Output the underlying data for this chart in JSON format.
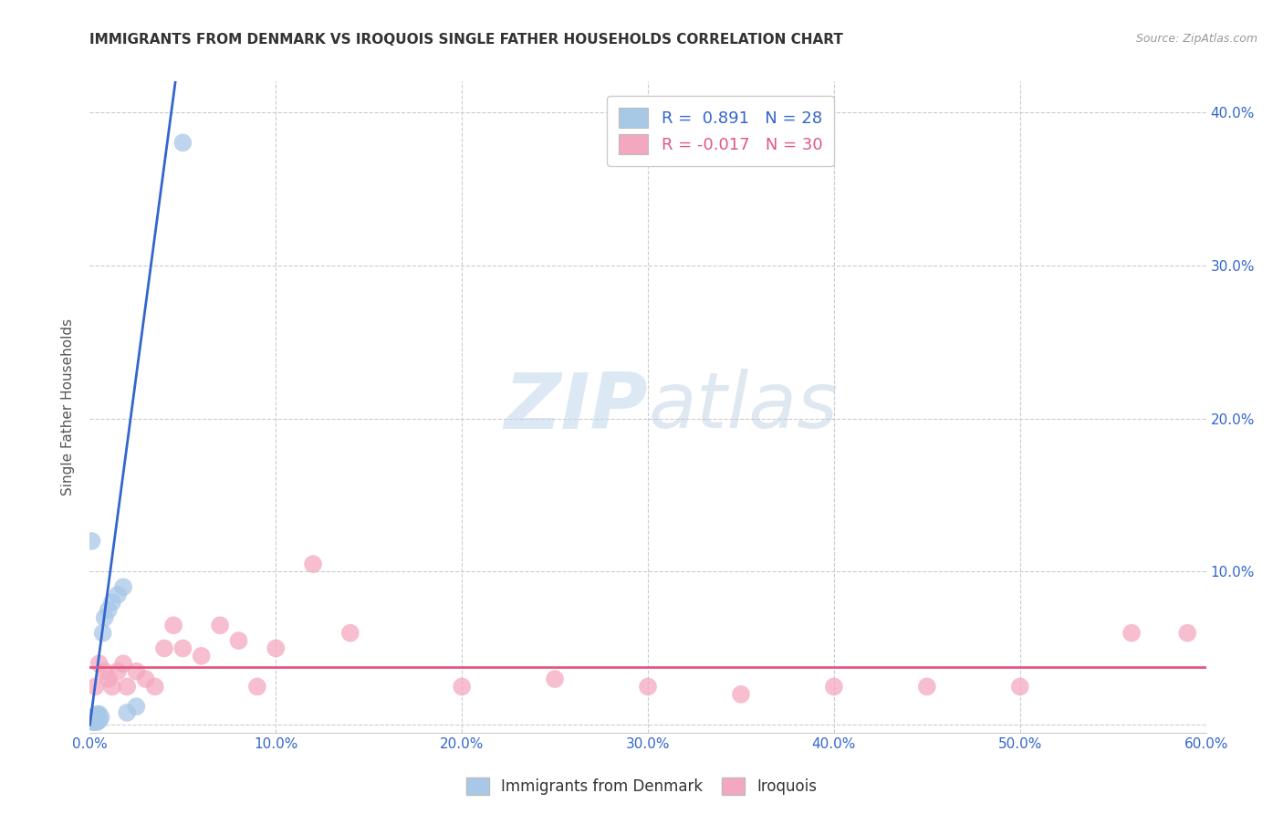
{
  "title": "IMMIGRANTS FROM DENMARK VS IROQUOIS SINGLE FATHER HOUSEHOLDS CORRELATION CHART",
  "source": "Source: ZipAtlas.com",
  "ylabel": "Single Father Households",
  "watermark_zip": "ZIP",
  "watermark_atlas": "atlas",
  "xlim": [
    0.0,
    0.6
  ],
  "ylim": [
    -0.005,
    0.42
  ],
  "xticks": [
    0.0,
    0.1,
    0.2,
    0.3,
    0.4,
    0.5,
    0.6
  ],
  "yticks": [
    0.0,
    0.1,
    0.2,
    0.3,
    0.4
  ],
  "xtick_labels": [
    "0.0%",
    "10.0%",
    "20.0%",
    "30.0%",
    "40.0%",
    "50.0%",
    "60.0%"
  ],
  "ytick_labels_right": [
    "",
    "10.0%",
    "20.0%",
    "30.0%",
    "40.0%"
  ],
  "blue_color": "#a8c8e8",
  "pink_color": "#f4a8c0",
  "blue_line_color": "#3366cc",
  "pink_line_color": "#e05880",
  "legend_label1": "Immigrants from Denmark",
  "legend_label2": "Iroquois",
  "blue_scatter_x": [
    0.001,
    0.001,
    0.002,
    0.002,
    0.002,
    0.002,
    0.003,
    0.003,
    0.003,
    0.003,
    0.003,
    0.004,
    0.004,
    0.004,
    0.004,
    0.005,
    0.005,
    0.006,
    0.007,
    0.008,
    0.01,
    0.012,
    0.015,
    0.018,
    0.02,
    0.025,
    0.05,
    0.001
  ],
  "blue_scatter_y": [
    0.002,
    0.003,
    0.002,
    0.003,
    0.004,
    0.005,
    0.002,
    0.003,
    0.004,
    0.005,
    0.006,
    0.002,
    0.003,
    0.005,
    0.007,
    0.003,
    0.007,
    0.005,
    0.06,
    0.07,
    0.075,
    0.08,
    0.085,
    0.09,
    0.008,
    0.012,
    0.38,
    0.12
  ],
  "pink_scatter_x": [
    0.003,
    0.005,
    0.008,
    0.01,
    0.012,
    0.015,
    0.018,
    0.02,
    0.025,
    0.03,
    0.035,
    0.04,
    0.045,
    0.05,
    0.06,
    0.07,
    0.08,
    0.09,
    0.1,
    0.12,
    0.14,
    0.2,
    0.25,
    0.3,
    0.35,
    0.4,
    0.45,
    0.5,
    0.56,
    0.59
  ],
  "pink_scatter_y": [
    0.025,
    0.04,
    0.035,
    0.03,
    0.025,
    0.035,
    0.04,
    0.025,
    0.035,
    0.03,
    0.025,
    0.05,
    0.065,
    0.05,
    0.045,
    0.065,
    0.055,
    0.025,
    0.05,
    0.105,
    0.06,
    0.025,
    0.03,
    0.025,
    0.02,
    0.025,
    0.025,
    0.025,
    0.06,
    0.06
  ],
  "blue_trend_x": [
    0.0,
    0.046
  ],
  "blue_trend_y": [
    0.0,
    0.42
  ],
  "pink_trend_y": 0.038,
  "background_color": "#ffffff",
  "grid_color": "#cccccc"
}
